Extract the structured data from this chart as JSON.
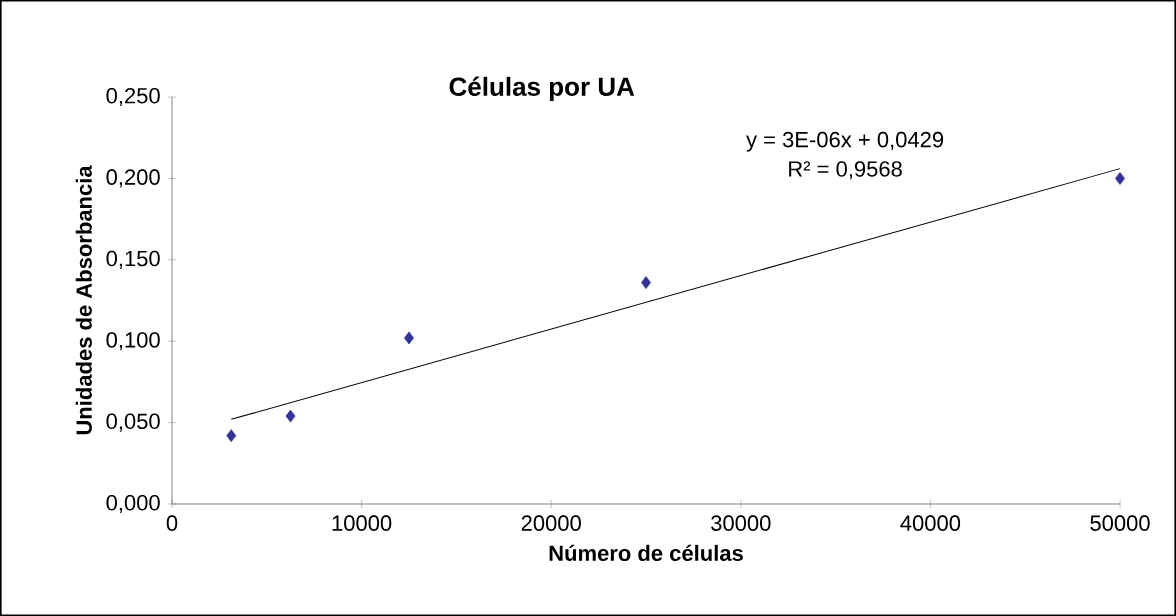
{
  "chart_data": {
    "type": "scatter",
    "title": "Células por UA",
    "xlabel": "Número de células",
    "ylabel": "Unidades de Absorbancia",
    "annotations": [
      "y = 3E-06x + 0,0429",
      "R² = 0,9568"
    ],
    "xlim": [
      0,
      50000
    ],
    "xticks": [
      0,
      10000,
      20000,
      30000,
      40000,
      50000
    ],
    "ylim": [
      0,
      0.25
    ],
    "yticks": [
      {
        "value": 0,
        "label": "0,000"
      },
      {
        "value": 0.05,
        "label": "0,050"
      },
      {
        "value": 0.1,
        "label": "0,100"
      },
      {
        "value": 0.15,
        "label": "0,150"
      },
      {
        "value": 0.2,
        "label": "0,200"
      },
      {
        "value": 0.25,
        "label": "0,250"
      }
    ],
    "marker": "diamond",
    "grid": false,
    "series": [
      {
        "color": "#333399",
        "x": [
          3125,
          6250,
          12500,
          25000,
          50000
        ],
        "values": [
          0.042,
          0.054,
          0.102,
          0.136,
          0.2
        ]
      },
      {
        "type": "line",
        "marker": "none",
        "color": "#000000",
        "x": [
          3125,
          50000
        ],
        "values": [
          0.052,
          0.206
        ]
      }
    ]
  }
}
